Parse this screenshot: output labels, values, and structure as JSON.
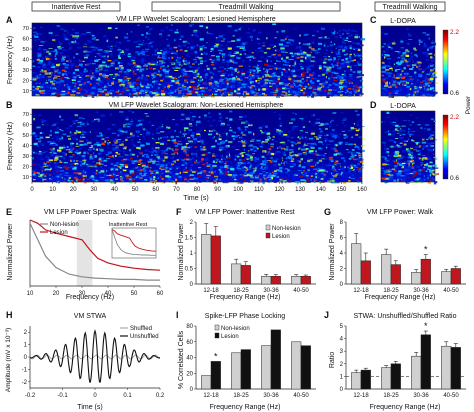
{
  "header": {
    "inattentive_rest": "Inattentive Rest",
    "treadmill_walking": "Treadmill Walking",
    "treadmill_walking_right": "Treadmill Walking"
  },
  "panels": {
    "A": {
      "letter": "A",
      "title": "VM LFP Wavelet Scalogram: Lesioned Hemisphere",
      "ylabel": "Frequency (Hz)"
    },
    "B": {
      "letter": "B",
      "title": "VM LFP Wavelet Scalogram: Non-Lesioned Hemisphere",
      "ylabel": "Frequency (Hz)",
      "xlabel": "Time (s)",
      "xticks": [
        "0",
        "10",
        "20",
        "30",
        "40",
        "50",
        "60",
        "70",
        "80",
        "90",
        "100",
        "110",
        "120",
        "130",
        "140",
        "150",
        "160"
      ]
    },
    "C": {
      "letter": "C",
      "title": "L-DOPA"
    },
    "D": {
      "letter": "D",
      "title": "L-DOPA"
    },
    "colorbar": {
      "label": "Power",
      "top": "2.2",
      "bottom": "0.6",
      "top2": "2.2",
      "bottom2": "0.6"
    },
    "yticks_scalogram": [
      "70",
      "60",
      "50",
      "40",
      "30",
      "20",
      "10"
    ],
    "E": {
      "letter": "E",
      "title": "VM LFP Power Spectra: Walk",
      "ylabel": "Normalized Power",
      "xlabel": "Frequency (Hz)",
      "legend": [
        "Non-lesion",
        "Lesion"
      ],
      "inset_title": "Inattentive Rest",
      "xticks": [
        "10",
        "20",
        "30",
        "40",
        "50",
        "60"
      ]
    },
    "F": {
      "letter": "F",
      "title": "VM LFP Power: Inattentive Rest",
      "ylabel": "Normalized Power",
      "xlabel": "Frequency Range (Hz)",
      "legend": [
        "Non-lesion",
        "Lesion"
      ]
    },
    "G": {
      "letter": "G",
      "title": "VM LFP Power: Walk",
      "ylabel": "Normalized Power",
      "xlabel": "Frequency Range (Hz)",
      "star": "*"
    },
    "H": {
      "letter": "H",
      "title": "VM STWA",
      "ylabel": "Amplitude (mV x 10⁻³)",
      "xlabel": "Time (s)",
      "legend": [
        "Shuffled",
        "Unshuffled"
      ],
      "xticks": [
        "-0.2",
        "-0.1",
        "0",
        "0.1",
        "0.2"
      ],
      "yticks": [
        "2",
        "1",
        "0",
        "-1",
        "-2"
      ]
    },
    "I": {
      "letter": "I",
      "title": "Spike-LFP Phase Locking",
      "ylabel": "% Correlated Cells",
      "xlabel": "Frequency Range (Hz)",
      "legend": [
        "Non-lesion",
        "Lesion"
      ],
      "star": "*"
    },
    "J": {
      "letter": "J",
      "title": "STWA: Unshuffled/Shuffled Ratio",
      "ylabel": "Ratio",
      "xlabel": "Frequency Range (Hz)",
      "star": "*"
    }
  },
  "chart_data": [
    {
      "id": "F",
      "type": "bar",
      "categories": [
        "12-18",
        "18-25",
        "30-36",
        "40-50"
      ],
      "series": [
        {
          "name": "Non-lesion",
          "values": [
            1.6,
            0.65,
            0.25,
            0.25
          ]
        },
        {
          "name": "Lesion",
          "values": [
            1.55,
            0.6,
            0.25,
            0.25
          ]
        }
      ],
      "errors": [
        [
          0.35,
          0.15,
          0.06,
          0.05
        ],
        [
          0.3,
          0.12,
          0.05,
          0.04
        ]
      ],
      "ylim": [
        0,
        2
      ],
      "yticks": [
        0,
        0.5,
        1,
        1.5,
        2
      ],
      "colors": {
        "Non-lesion": "#d0d0d0",
        "Lesion": "#c0161d"
      }
    },
    {
      "id": "G",
      "type": "bar",
      "categories": [
        "12-18",
        "18-25",
        "30-36",
        "40-50"
      ],
      "series": [
        {
          "name": "Non-lesion",
          "values": [
            5.2,
            3.8,
            1.5,
            1.6
          ]
        },
        {
          "name": "Lesion",
          "values": [
            3.0,
            2.5,
            3.2,
            2.0
          ]
        }
      ],
      "errors": [
        [
          1.3,
          0.7,
          0.35,
          0.3
        ],
        [
          1.0,
          0.5,
          0.6,
          0.3
        ]
      ],
      "ylim": [
        0,
        8
      ],
      "yticks": [
        0,
        2,
        4,
        6,
        8
      ],
      "colors": {
        "Non-lesion": "#d0d0d0",
        "Lesion": "#c0161d"
      },
      "star_index": 2
    },
    {
      "id": "I",
      "type": "bar",
      "categories": [
        "12-18",
        "18-25",
        "30-36",
        "40-50"
      ],
      "series": [
        {
          "name": "Non-lesion",
          "values": [
            17,
            46,
            55,
            60
          ]
        },
        {
          "name": "Lesion",
          "values": [
            35,
            50,
            75,
            55
          ]
        }
      ],
      "ylim": [
        0,
        80
      ],
      "yticks": [
        0,
        20,
        40,
        60,
        80
      ],
      "colors": {
        "Non-lesion": "#d0d0d0",
        "Lesion": "#111111"
      },
      "star_index": 0
    },
    {
      "id": "J",
      "type": "bar",
      "categories": [
        "12-18",
        "18-25",
        "30-36",
        "40-50"
      ],
      "series": [
        {
          "name": "Non-lesion",
          "values": [
            1.3,
            1.7,
            2.6,
            3.4
          ]
        },
        {
          "name": "Lesion",
          "values": [
            1.5,
            2.0,
            4.3,
            3.3
          ]
        }
      ],
      "errors": [
        [
          0.2,
          0.15,
          0.3,
          0.35
        ],
        [
          0.15,
          0.2,
          0.3,
          0.3
        ]
      ],
      "ylim": [
        0,
        5
      ],
      "yticks": [
        0,
        1,
        2,
        3,
        4,
        5
      ],
      "colors": {
        "Non-lesion": "#d0d0d0",
        "Lesion": "#111111"
      },
      "star_index": 2,
      "dashed_y": 1
    },
    {
      "id": "E",
      "type": "line",
      "x_range": [
        10,
        60
      ],
      "y_range": [
        0,
        1
      ],
      "series": [
        {
          "name": "Non-lesion",
          "x": [
            10,
            13,
            16,
            20,
            25,
            30,
            35,
            40,
            45,
            50,
            55,
            60
          ],
          "y": [
            0.95,
            0.7,
            0.45,
            0.28,
            0.18,
            0.14,
            0.12,
            0.11,
            0.1,
            0.1,
            0.09,
            0.09
          ]
        },
        {
          "name": "Lesion",
          "x": [
            10,
            13,
            16,
            20,
            25,
            30,
            33,
            36,
            40,
            45,
            50,
            55,
            60
          ],
          "y": [
            1.0,
            0.95,
            0.85,
            0.8,
            0.75,
            0.7,
            0.55,
            0.42,
            0.35,
            0.3,
            0.27,
            0.25,
            0.24
          ]
        }
      ],
      "shaded_x": [
        28,
        34
      ]
    }
  ]
}
